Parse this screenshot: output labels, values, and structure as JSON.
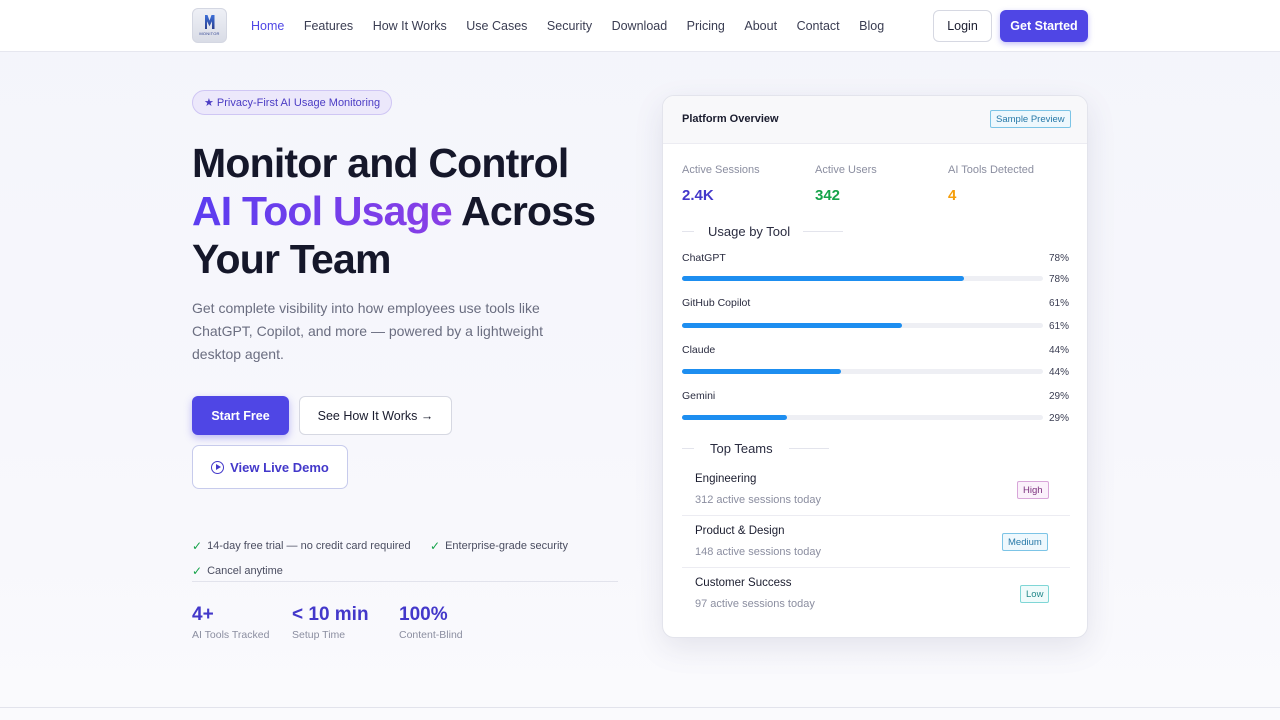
{
  "nav": {
    "logo_text": "MONITOR",
    "links": [
      "Home",
      "Features",
      "How It Works",
      "Use Cases",
      "Security",
      "Download",
      "Pricing",
      "About",
      "Contact",
      "Blog"
    ],
    "login_label": "Login",
    "get_started_label": "Get Started",
    "accent_color": "#4f46e5"
  },
  "hero": {
    "badge": "★ Privacy-First AI Usage Monitoring",
    "headline_line1": "Monitor and Control",
    "headline_highlight": "AI Tool Usage",
    "headline_rest": " Across",
    "headline_line3": "Your Team",
    "subtext": "Get complete visibility into how employees use tools like ChatGPT, Copilot, and more — powered by a lightweight desktop agent.",
    "start_free_label": "Start Free",
    "see_how_label": "See How It Works →",
    "demo_label": "View Live Demo",
    "perks": [
      "14-day free trial — no credit card required",
      "Enterprise-grade security",
      "Cancel anytime"
    ],
    "stats": [
      {
        "value": "4+",
        "label": "AI Tools Tracked"
      },
      {
        "value": "< 10 min",
        "label": "Setup Time"
      },
      {
        "value": "100%",
        "label": "Content-Blind"
      }
    ]
  },
  "card": {
    "title": "Platform Overview",
    "badge": "Sample Preview",
    "metrics": [
      {
        "label": "Active Sessions",
        "value": "2.4K",
        "color": "#4338ca"
      },
      {
        "label": "Active Users",
        "value": "342",
        "color": "#16a34a"
      },
      {
        "label": "AI Tools Detected",
        "value": "4",
        "color": "#f59e0b"
      }
    ],
    "usage_title": "Usage by Tool",
    "tools": [
      {
        "name": "ChatGPT",
        "pct_label": "78%",
        "pct": 78
      },
      {
        "name": "GitHub Copilot",
        "pct_label": "61%",
        "pct": 61
      },
      {
        "name": "Claude",
        "pct_label": "44%",
        "pct": 44
      },
      {
        "name": "Gemini",
        "pct_label": "29%",
        "pct": 29
      }
    ],
    "teams_title": "Top Teams",
    "teams": [
      {
        "name": "Engineering",
        "sub": "312 active sessions today",
        "level": "High"
      },
      {
        "name": "Product & Design",
        "sub": "148 active sessions today",
        "level": "Medium"
      },
      {
        "name": "Customer Success",
        "sub": "97 active sessions today",
        "level": "Low"
      }
    ]
  }
}
